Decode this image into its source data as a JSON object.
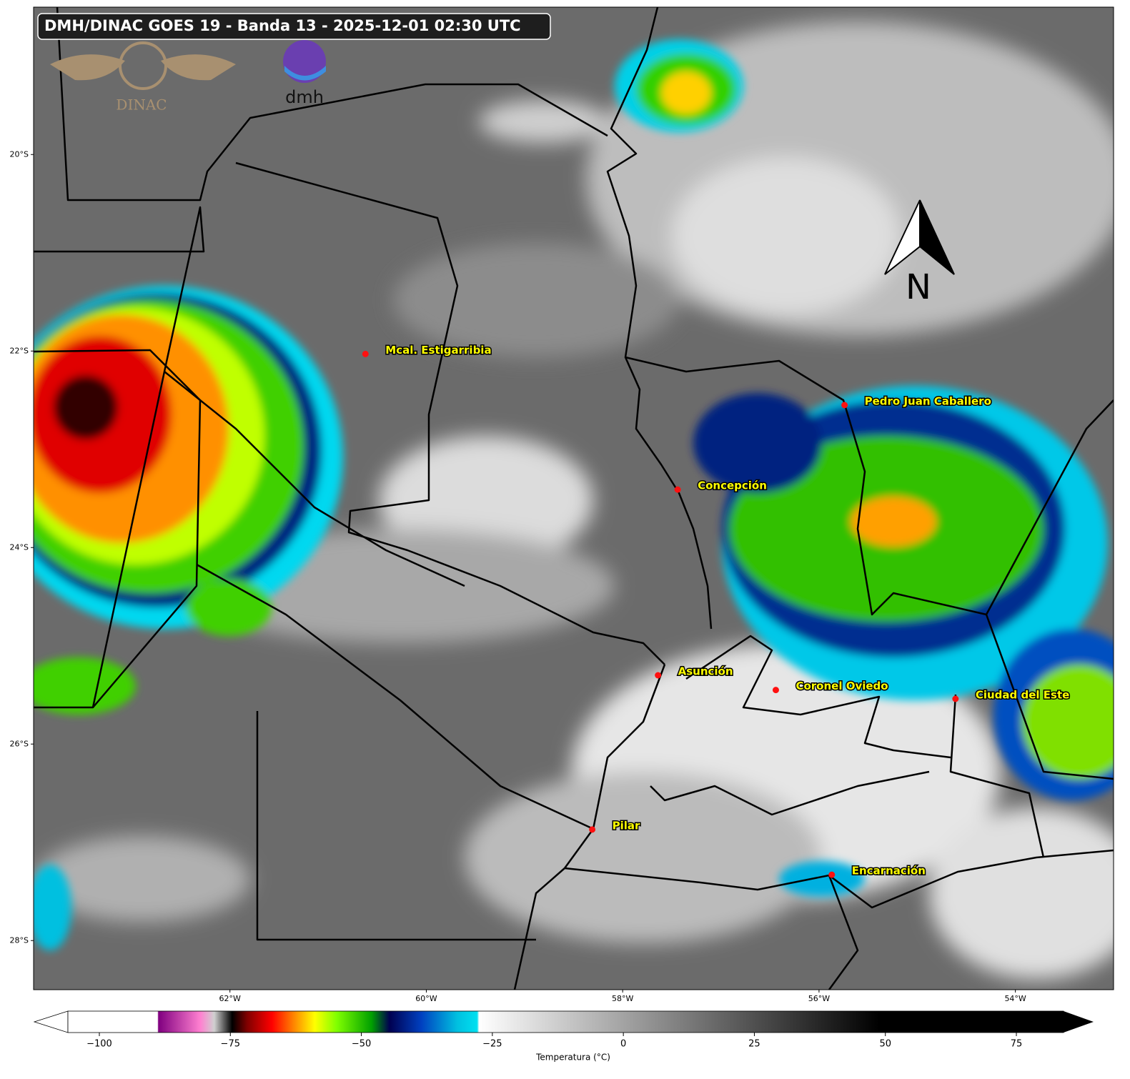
{
  "title": "DMH/DINAC GOES 19 - Banda 13 - 2025-12-01 02:30 UTC",
  "logos": {
    "dinac": "DINAC",
    "dmh": "dmh"
  },
  "north_label": "N",
  "map": {
    "xlim": [
      -64,
      -53
    ],
    "ylim": [
      -28.5,
      -18.5
    ],
    "xticks": [
      {
        "value": -62,
        "label": "62°W"
      },
      {
        "value": -60,
        "label": "60°W"
      },
      {
        "value": -58,
        "label": "58°W"
      },
      {
        "value": -56,
        "label": "56°W"
      },
      {
        "value": -54,
        "label": "54°W"
      }
    ],
    "yticks": [
      {
        "value": -20,
        "label": "20°S"
      },
      {
        "value": -22,
        "label": "22°S"
      },
      {
        "value": -24,
        "label": "24°S"
      },
      {
        "value": -26,
        "label": "26°S"
      },
      {
        "value": -28,
        "label": "28°S"
      }
    ],
    "cities": [
      {
        "name": "Mcal. Estigarribia",
        "lon": -60.62,
        "lat": -22.03
      },
      {
        "name": "Pedro Juan Caballero",
        "lon": -55.74,
        "lat": -22.55
      },
      {
        "name": "Concepción",
        "lon": -57.44,
        "lat": -23.41
      },
      {
        "name": "Asunción",
        "lon": -57.64,
        "lat": -25.3
      },
      {
        "name": "Coronel Oviedo",
        "lon": -56.44,
        "lat": -25.45
      },
      {
        "name": "Ciudad del Este",
        "lon": -54.61,
        "lat": -25.54
      },
      {
        "name": "Pilar",
        "lon": -58.31,
        "lat": -26.87
      },
      {
        "name": "Encarnación",
        "lon": -55.87,
        "lat": -27.33
      }
    ]
  },
  "colorbar": {
    "label": "Temperatura (°C)",
    "lim": [
      -106,
      84
    ],
    "ticks": [
      {
        "value": -100,
        "label": "−100"
      },
      {
        "value": -75,
        "label": "−75"
      },
      {
        "value": -50,
        "label": "−50"
      },
      {
        "value": -25,
        "label": "−25"
      },
      0,
      25,
      50,
      75
    ]
  }
}
